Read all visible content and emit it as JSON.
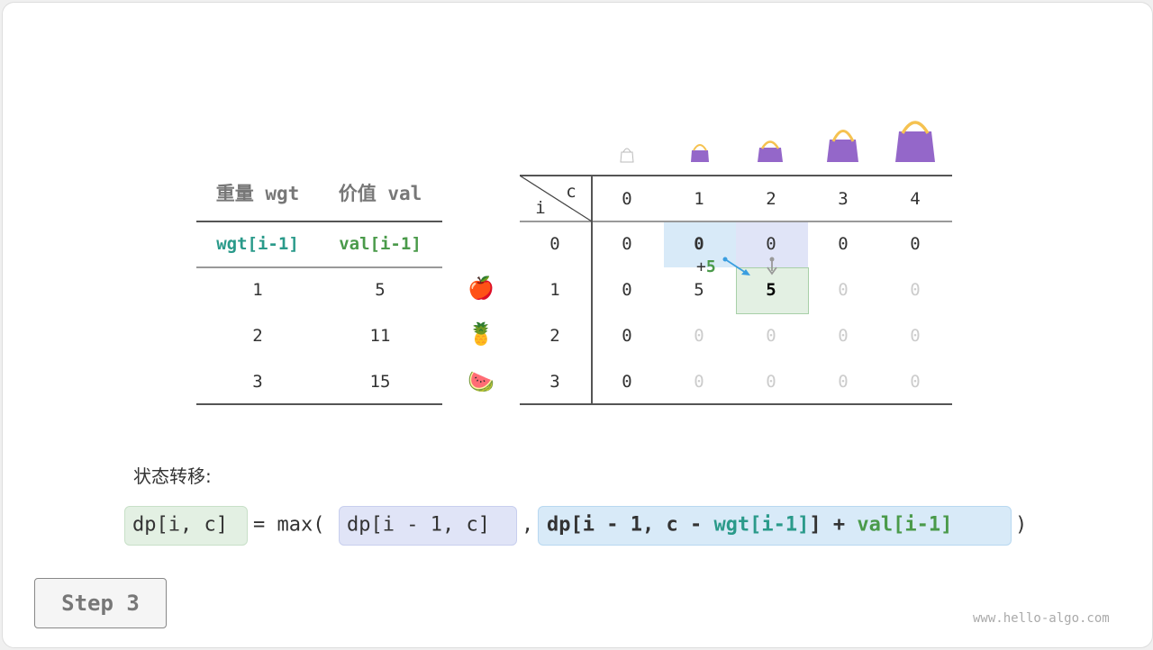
{
  "items_table": {
    "headers": [
      "重量 wgt",
      "价值 val"
    ],
    "subheaders": [
      "wgt[i-1]",
      "val[i-1]"
    ],
    "rows": [
      [
        "1",
        "5"
      ],
      [
        "2",
        "11"
      ],
      [
        "3",
        "15"
      ]
    ],
    "item_icons": [
      "apple-icon",
      "pineapple-icon",
      "watermelon-icon"
    ]
  },
  "dp_table": {
    "corner_c": "c",
    "corner_i": "i",
    "capacities": [
      "0",
      "1",
      "2",
      "3",
      "4"
    ],
    "row_labels": [
      "0",
      "1",
      "2",
      "3"
    ],
    "cells": [
      [
        "0",
        "0",
        "0",
        "0",
        "0"
      ],
      [
        "0",
        "5",
        "5",
        "0",
        "0"
      ],
      [
        "0",
        "0",
        "0",
        "0",
        "0"
      ],
      [
        "0",
        "0",
        "0",
        "0",
        "0"
      ]
    ],
    "computed": [
      [
        true,
        true,
        true,
        true,
        true
      ],
      [
        true,
        true,
        true,
        false,
        false
      ],
      [
        true,
        false,
        false,
        false,
        false
      ],
      [
        true,
        false,
        false,
        false,
        false
      ]
    ],
    "annotation": {
      "plus": "+",
      "value": "5"
    }
  },
  "colors": {
    "current": "#e3f0e3",
    "up": "#e0e4f7",
    "diag": "#d8eaf8",
    "bag": "#9467c9",
    "handle": "#f5c251"
  },
  "transition": {
    "label": "状态转移:",
    "lhs": "dp[i, c]",
    "eq": "= max(",
    "opt1": "dp[i - 1, c]",
    "comma": ",",
    "opt2_a": "dp[i - 1, c - ",
    "opt2_wgt": "wgt[i-1]",
    "opt2_b": "] + ",
    "opt2_val": "val[i-1]",
    "close": ")"
  },
  "step_button": "Step 3",
  "watermark": "www.hello-algo.com"
}
